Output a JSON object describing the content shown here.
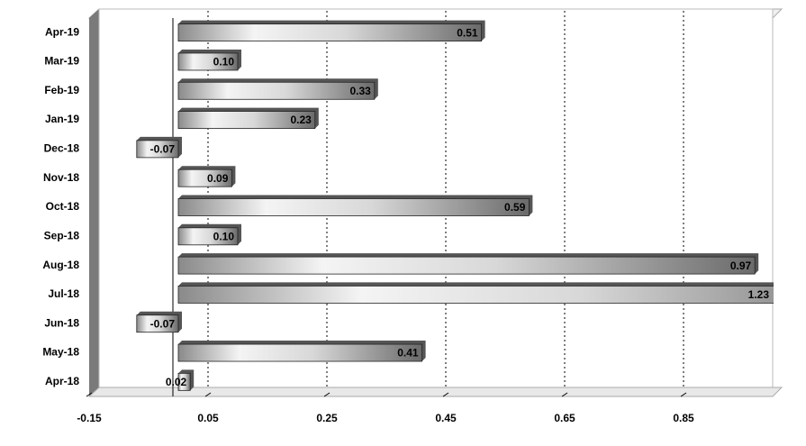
{
  "chart_data": {
    "type": "hbar",
    "categories": [
      "Apr-18",
      "May-18",
      "Jun-18",
      "Jul-18",
      "Aug-18",
      "Sep-18",
      "Oct-18",
      "Nov-18",
      "Dec-18",
      "Jan-19",
      "Feb-19",
      "Mar-19",
      "Apr-19"
    ],
    "values": [
      0.02,
      0.41,
      -0.07,
      1.23,
      0.97,
      0.1,
      0.59,
      0.09,
      -0.07,
      0.23,
      0.33,
      0.1,
      0.51
    ],
    "value_labels": [
      "0.02",
      "0.41",
      "-0.07",
      "1.23",
      "0.97",
      "0.10",
      "0.59",
      "0.09",
      "-0.07",
      "0.23",
      "0.33",
      "0.10",
      "0.51"
    ],
    "color": "#9a9a9a",
    "xlim": [
      -0.15,
      1.0
    ],
    "xticks": [
      -0.15,
      0.05,
      0.25,
      0.45,
      0.65,
      0.85
    ],
    "grid": true
  }
}
